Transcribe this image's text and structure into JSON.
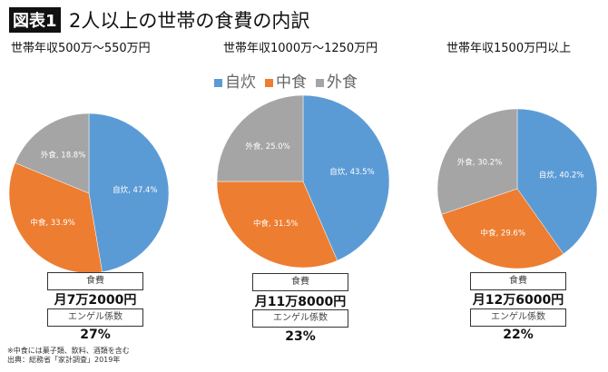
{
  "header": {
    "badge": "図表1",
    "title": "2人以上の世帯の食費の内訳"
  },
  "chart_data": {
    "type": "pie",
    "legend": [
      "自炊",
      "中食",
      "外食"
    ],
    "legend_position": "top",
    "colors": [
      "#5B9BD5",
      "#ED7D31",
      "#A5A5A5"
    ],
    "charts": [
      {
        "title": "世帯年収500万〜550万円",
        "labels": [
          "自炊, 47.4%",
          "中食, 33.9%",
          "外食, 18.8%"
        ],
        "values": [
          47.4,
          33.9,
          18.8
        ]
      },
      {
        "title": "世帯年収1000万〜1250万円",
        "labels": [
          "自炊, 43.5%",
          "中食, 31.5%",
          "外食, 25.0%"
        ],
        "values": [
          43.5,
          31.5,
          25.0
        ]
      },
      {
        "title": "世帯年収1500万円以上",
        "labels": [
          "自炊, 40.2%",
          "中食, 29.6%",
          "外食, 30.2%"
        ],
        "values": [
          40.2,
          29.6,
          30.2
        ]
      }
    ]
  },
  "stats": [
    {
      "food_label": "食費",
      "food_value": "月7万2000円",
      "engel_label": "エンゲル係数",
      "engel_value": "27%"
    },
    {
      "food_label": "食費",
      "food_value": "月11万8000円",
      "engel_label": "エンゲル係数",
      "engel_value": "23%"
    },
    {
      "food_label": "食費",
      "food_value": "月12万6000円",
      "engel_label": "エンゲル係数",
      "engel_value": "22%"
    }
  ],
  "notes": {
    "line1": "※中食には菓子類、飲料、酒類を含む",
    "line2": "出典：総務省「家計調査」2019年"
  }
}
